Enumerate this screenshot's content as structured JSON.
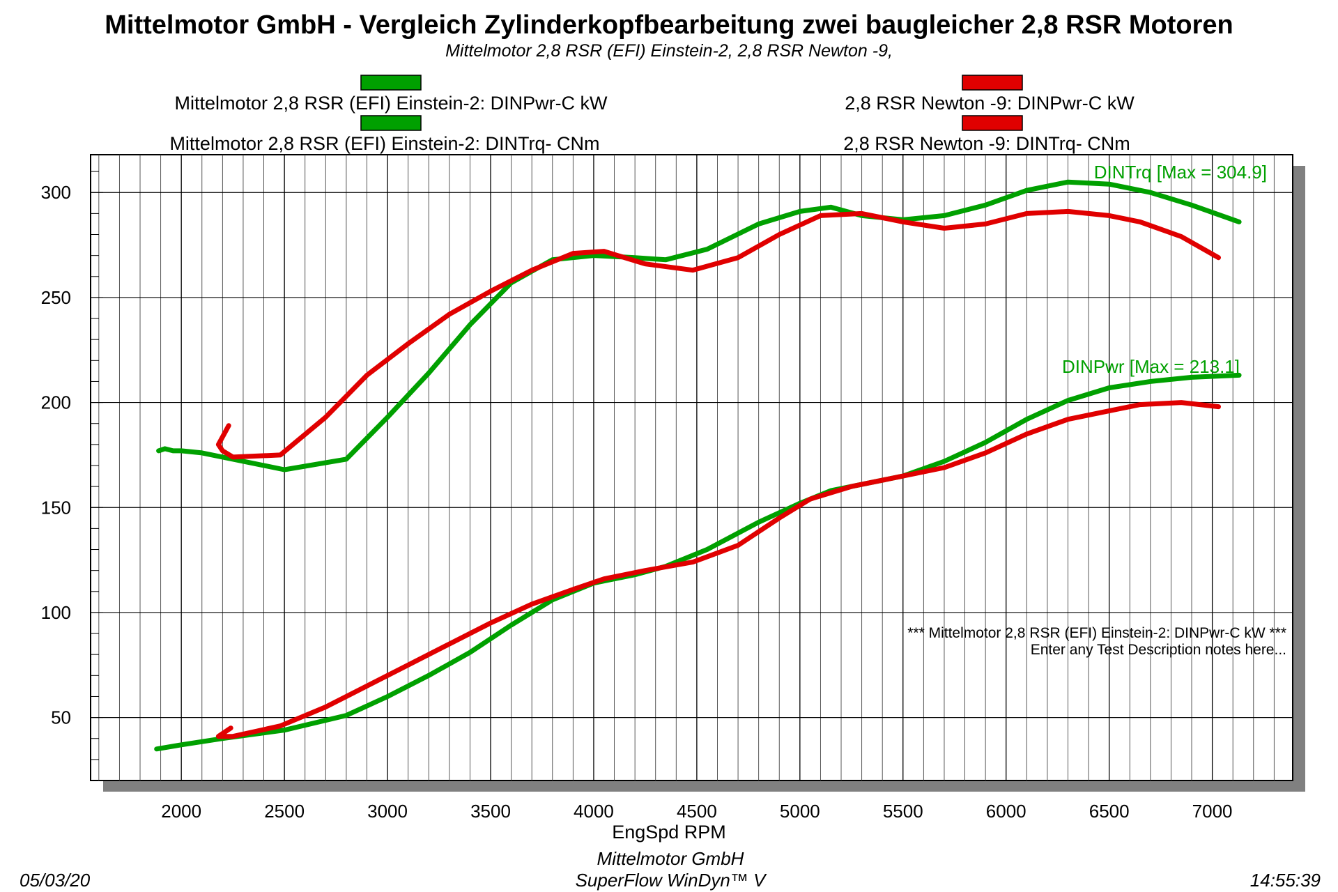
{
  "chart_data": {
    "type": "line",
    "title": "Mittelmotor GmbH - Vergleich Zylinderkopfbearbeitung zwei baugleicher 2,8 RSR Motoren",
    "subtitle": "Mittelmotor 2,8 RSR (EFI) Einstein-2, 2,8 RSR Newton -9,",
    "xlabel": "EngSpd  RPM",
    "xlim": [
      1560,
      7390
    ],
    "ylim": [
      20,
      318
    ],
    "x_ticks": [
      "2000",
      "2500",
      "3000",
      "3500",
      "4000",
      "4500",
      "5000",
      "5500",
      "6000",
      "6500",
      "7000"
    ],
    "y_ticks": [
      "50",
      "100",
      "150",
      "200",
      "250",
      "300"
    ],
    "grid": true,
    "legend": {
      "placement": "top",
      "entries": [
        {
          "label": "Mittelmotor 2,8 RSR (EFI) Einstein-2: DINPwr-C kW",
          "color": "#00a000"
        },
        {
          "label": "2,8 RSR Newton -9: DINPwr-C kW",
          "color": "#e00000"
        },
        {
          "label": "Mittelmotor 2,8 RSR (EFI) Einstein-2: DINTrq- CNm",
          "color": "#00a000"
        },
        {
          "label": "2,8 RSR Newton -9: DINTrq- CNm",
          "color": "#e00000"
        }
      ]
    },
    "annotations": {
      "trq_max": "DINTrq [Max = 304.9]",
      "pwr_max": "DINPwr [Max = 213.1]",
      "note_line1": "*** Mittelmotor 2,8 RSR (EFI) Einstein-2: DINPwr-C kW   ***",
      "note_line2": "Enter any Test Description notes here..."
    },
    "series": [
      {
        "name": "Mittelmotor 2,8 RSR (EFI) Einstein-2: DINTrq- CNm",
        "color": "#00a000",
        "x": [
          1890,
          1920,
          1960,
          2000,
          2100,
          2250,
          2500,
          2800,
          3000,
          3200,
          3400,
          3600,
          3800,
          4000,
          4200,
          4350,
          4550,
          4800,
          5000,
          5150,
          5300,
          5500,
          5700,
          5900,
          6100,
          6300,
          6500,
          6700,
          6900,
          7130
        ],
        "y": [
          177,
          178,
          177,
          177,
          176,
          173,
          168,
          173,
          193,
          214,
          237,
          257,
          268,
          270,
          269,
          268,
          273,
          285,
          291,
          293,
          289,
          287,
          289,
          294,
          301,
          305,
          304,
          300,
          294,
          286
        ]
      },
      {
        "name": "2,8 RSR Newton -9: DINTrq- CNm",
        "color": "#e00000",
        "x": [
          2230,
          2180,
          2200,
          2250,
          2480,
          2700,
          2900,
          3100,
          3300,
          3500,
          3700,
          3900,
          4050,
          4250,
          4480,
          4700,
          4900,
          5100,
          5300,
          5500,
          5700,
          5900,
          6100,
          6300,
          6500,
          6650,
          6850,
          7030
        ],
        "y": [
          189,
          180,
          177,
          174,
          175,
          193,
          213,
          228,
          242,
          253,
          263,
          271,
          272,
          266,
          263,
          269,
          280,
          289,
          290,
          286,
          283,
          285,
          290,
          291,
          289,
          286,
          279,
          269
        ]
      },
      {
        "name": "Mittelmotor 2,8 RSR (EFI) Einstein-2: DINPwr-C kW",
        "color": "#00a000",
        "x": [
          1880,
          2000,
          2200,
          2500,
          2800,
          3000,
          3200,
          3400,
          3600,
          3800,
          4000,
          4200,
          4350,
          4550,
          4800,
          5000,
          5150,
          5300,
          5500,
          5700,
          5900,
          6100,
          6300,
          6500,
          6700,
          6900,
          7130
        ],
        "y": [
          35,
          37,
          40,
          44,
          51,
          60,
          70,
          81,
          94,
          106,
          114,
          118,
          122,
          130,
          143,
          152,
          158,
          161,
          165,
          172,
          181,
          192,
          201,
          207,
          210,
          212,
          213
        ]
      },
      {
        "name": "2,8 RSR Newton -9: DINPwr-C kW",
        "color": "#e00000",
        "x": [
          2240,
          2180,
          2250,
          2480,
          2700,
          2900,
          3100,
          3300,
          3500,
          3700,
          3900,
          4050,
          4250,
          4480,
          4700,
          4900,
          5050,
          5250,
          5500,
          5700,
          5900,
          6100,
          6300,
          6500,
          6650,
          6850,
          7030
        ],
        "y": [
          45,
          41,
          41,
          46,
          55,
          65,
          75,
          85,
          95,
          104,
          111,
          116,
          120,
          124,
          132,
          145,
          154,
          160,
          165,
          169,
          176,
          185,
          192,
          196,
          199,
          200,
          198
        ]
      }
    ]
  },
  "footer": {
    "center_line1": "Mittelmotor GmbH",
    "center_line2": "SuperFlow WinDyn™ V",
    "date": "05/03/20",
    "time": "14:55:39"
  }
}
